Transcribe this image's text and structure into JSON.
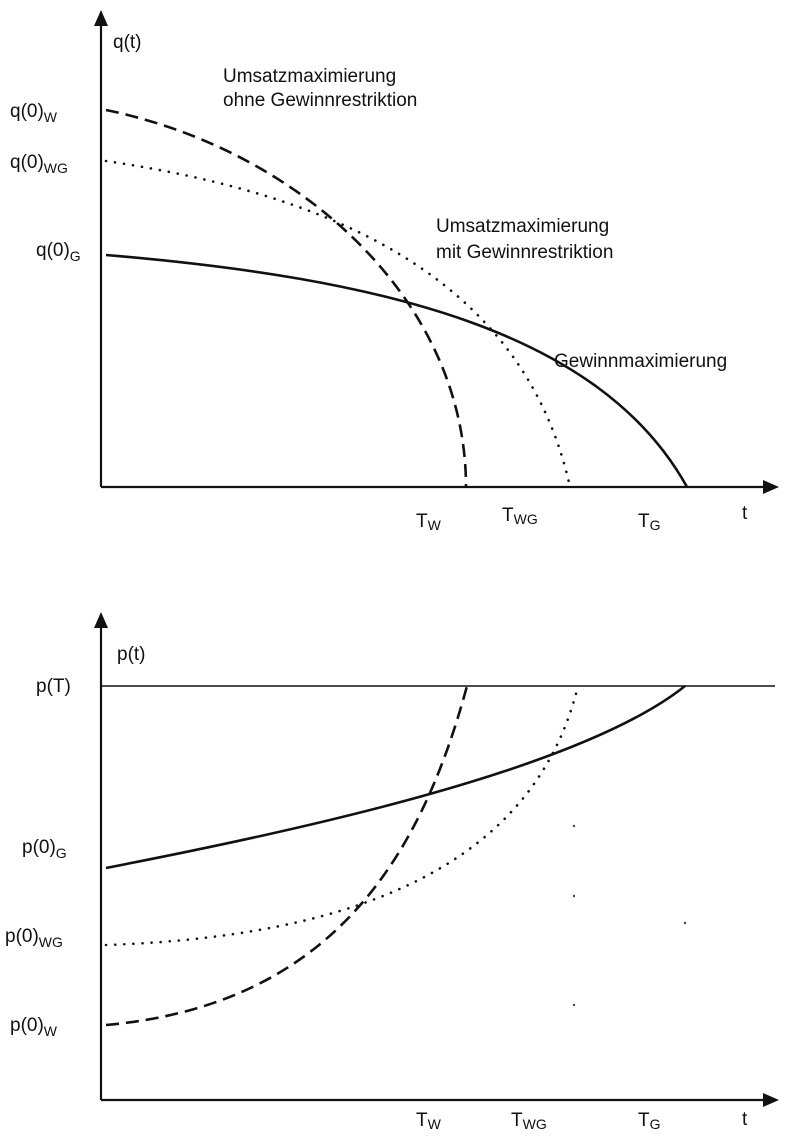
{
  "top": {
    "y_axis_label": "q(t)",
    "x_axis_label": "t",
    "y_ticks": {
      "w": {
        "main": "q(0)",
        "sub": "W"
      },
      "wg": {
        "main": "q(0)",
        "sub": "WG"
      },
      "g": {
        "main": "q(0)",
        "sub": "G"
      }
    },
    "x_ticks": {
      "w": {
        "main": "T",
        "sub": "W"
      },
      "wg": {
        "main": "T",
        "sub": "WG"
      },
      "g": {
        "main": "T",
        "sub": "G"
      }
    },
    "annotations": {
      "dashed_line1": "Umsatzmaximierung",
      "dashed_line2": "ohne Gewinnrestriktion",
      "dotted_line1": "Umsatzmaximierung",
      "dotted_line2": "mit Gewinnrestriktion",
      "solid": "Gewinnmaximierung"
    }
  },
  "bottom": {
    "y_axis_label": "p(t)",
    "x_axis_label": "t",
    "y_ticks": {
      "t": {
        "main": "p(T)",
        "sub": ""
      },
      "g": {
        "main": "p(0)",
        "sub": "G"
      },
      "wg": {
        "main": "p(0)",
        "sub": "WG"
      },
      "w": {
        "main": "p(0)",
        "sub": "W"
      }
    },
    "x_ticks": {
      "w": {
        "main": "T",
        "sub": "W"
      },
      "wg": {
        "main": "T",
        "sub": "WG"
      },
      "g": {
        "main": "T",
        "sub": "G"
      }
    }
  }
}
